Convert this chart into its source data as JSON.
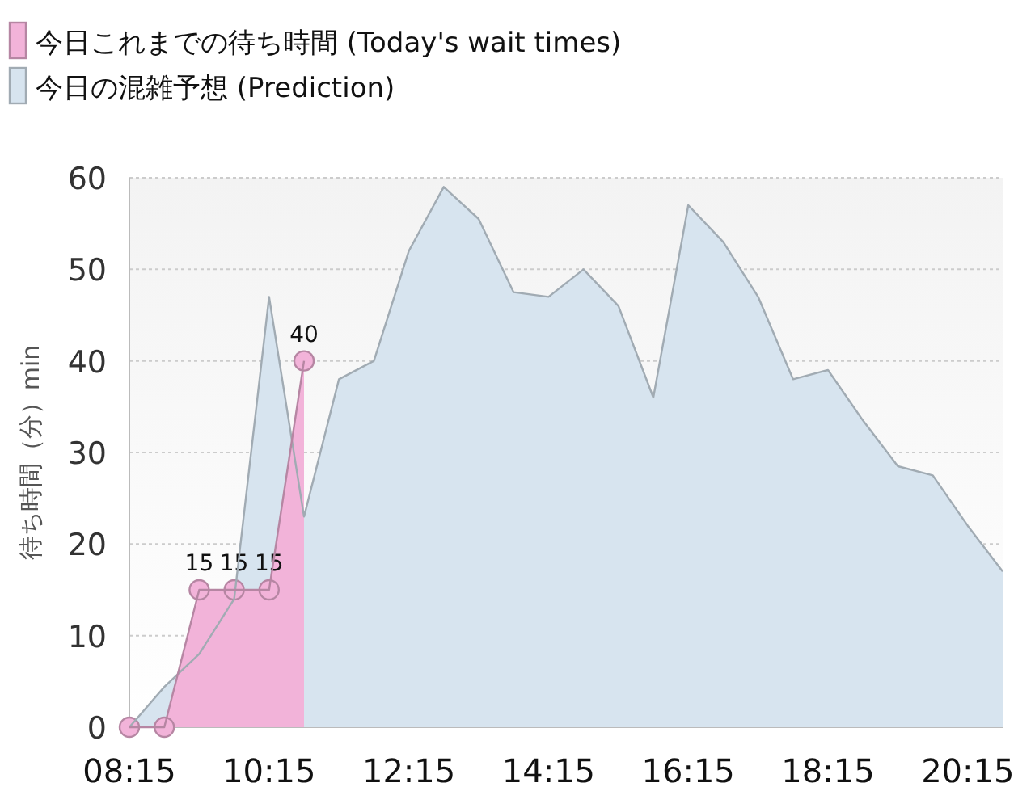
{
  "chart_data": {
    "type": "area",
    "ylabel": "待ち時間（分）min",
    "xlim": [
      8.25,
      20.75
    ],
    "xticks": [
      {
        "value": 8.25,
        "label": "08:15"
      },
      {
        "value": 10.25,
        "label": "10:15"
      },
      {
        "value": 12.25,
        "label": "12:15"
      },
      {
        "value": 14.25,
        "label": "14:15"
      },
      {
        "value": 16.25,
        "label": "16:15"
      },
      {
        "value": 18.25,
        "label": "18:15"
      },
      {
        "value": 20.25,
        "label": "20:15"
      }
    ],
    "ylim": [
      0,
      60
    ],
    "yticks": [
      0,
      10,
      20,
      30,
      40,
      50,
      60
    ],
    "grid": "y",
    "legend": "top left",
    "series": [
      {
        "name": "今日の混雑予想 (Prediction)",
        "color": "#d7e4ef",
        "marker": "none",
        "x": [
          8.25,
          8.75,
          9.25,
          9.75,
          10.25,
          10.75,
          11.25,
          11.75,
          12.25,
          12.75,
          13.25,
          13.75,
          14.25,
          14.75,
          15.25,
          15.75,
          16.25,
          16.75,
          17.25,
          17.75,
          18.25,
          18.75,
          19.25,
          19.75,
          20.25,
          20.75
        ],
        "values": [
          0,
          4.4,
          8,
          14,
          47,
          23,
          38,
          40,
          52,
          59,
          55.5,
          47.5,
          47,
          50,
          46,
          36,
          57,
          53,
          47,
          38,
          39,
          33.5,
          28.5,
          27.5,
          22,
          17
        ]
      },
      {
        "name": "今日これまでの待ち時間 (Today's wait times)",
        "color": "#f2b3d9",
        "marker": "circle",
        "x": [
          8.25,
          8.75,
          9.25,
          9.75,
          10.25,
          10.75
        ],
        "values": [
          0,
          0,
          15,
          15,
          15,
          40
        ],
        "value_labels": [
          null,
          null,
          "15",
          "15",
          "15",
          "40"
        ]
      }
    ]
  }
}
